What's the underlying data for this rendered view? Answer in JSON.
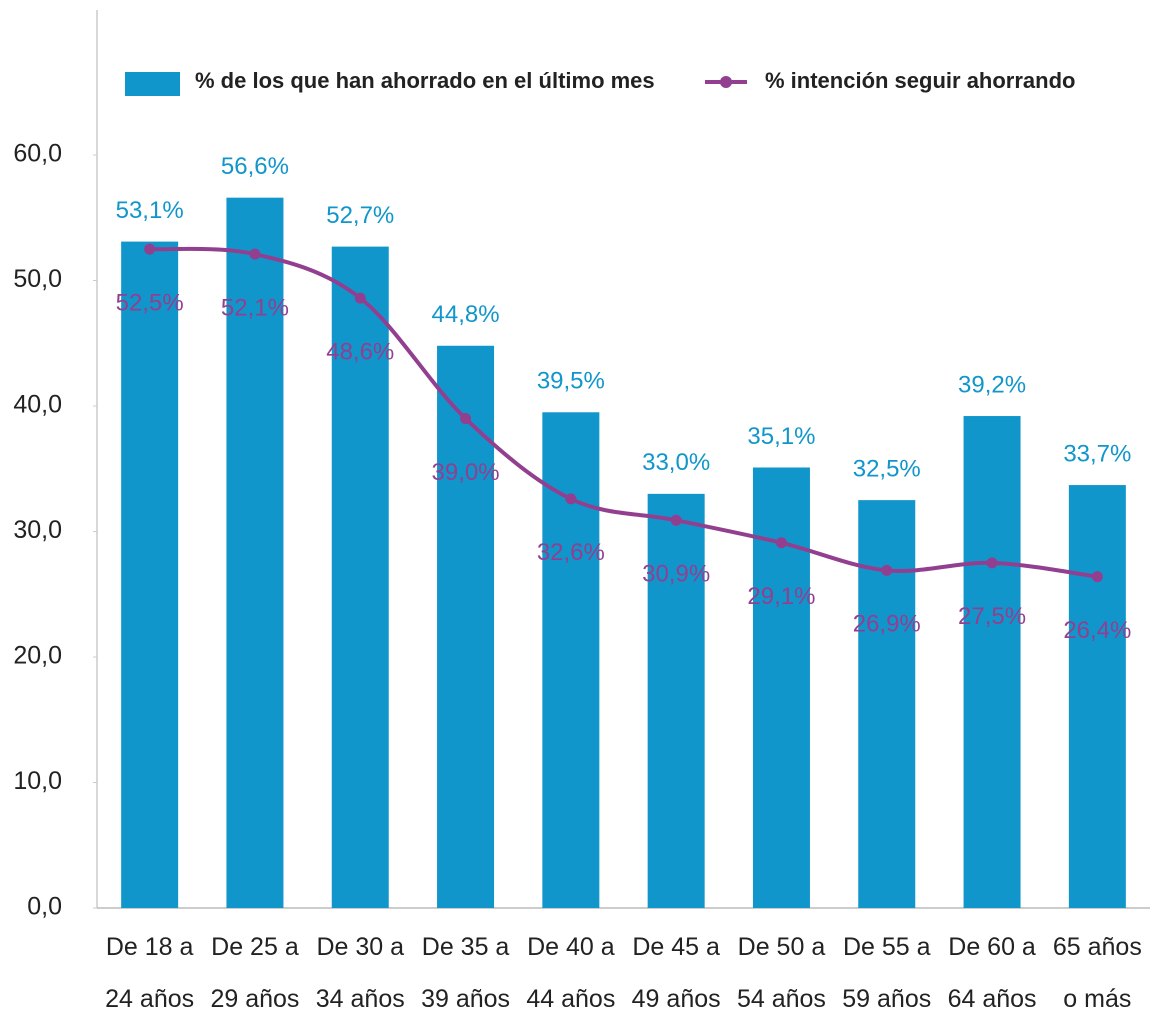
{
  "chart_data": {
    "type": "bar",
    "categories": [
      "De 18 a\n24 años",
      "De 25 a\n29 años",
      "De 30 a\n34 años",
      "De 35 a\n39 años",
      "De 40 a\n44 años",
      "De 45 a\n49 años",
      "De 50 a\n54 años",
      "De 55 a\n59 años",
      "De 60 a\n64 años",
      "65 años\no más"
    ],
    "series": [
      {
        "name": "% de los que han ahorrado en el último mes",
        "type": "bar",
        "color": "#1196cb",
        "values": [
          53.1,
          56.6,
          52.7,
          44.8,
          39.5,
          33.0,
          35.1,
          32.5,
          39.2,
          33.7
        ],
        "value_labels": [
          "53,1%",
          "56,6%",
          "52,7%",
          "44,8%",
          "39,5%",
          "33,0%",
          "35,1%",
          "32,5%",
          "39,2%",
          "33,7%"
        ]
      },
      {
        "name": "% intención seguir ahorrando",
        "type": "line",
        "color": "#933f8f",
        "values": [
          52.5,
          52.1,
          48.6,
          39.0,
          32.6,
          30.9,
          29.1,
          26.9,
          27.5,
          26.4
        ],
        "value_labels": [
          "52,5%",
          "52,1%",
          "48,6%",
          "39,0%",
          "32,6%",
          "30,9%",
          "29,1%",
          "26,9%",
          "27,5%",
          "26,4%"
        ]
      }
    ],
    "ylim": [
      0,
      60
    ],
    "yticks": [
      {
        "value": 0,
        "label": "0,0"
      },
      {
        "value": 10,
        "label": "10,0"
      },
      {
        "value": 20,
        "label": "20,0"
      },
      {
        "value": 30,
        "label": "30,0"
      },
      {
        "value": 40,
        "label": "40,0"
      },
      {
        "value": 50,
        "label": "50,0"
      },
      {
        "value": 60,
        "label": "60,0"
      }
    ],
    "legend": "top"
  }
}
